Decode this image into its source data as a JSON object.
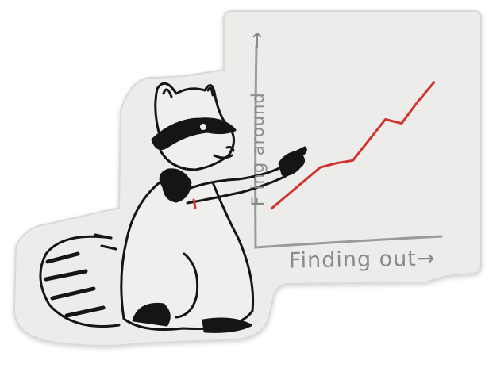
{
  "sticker": {
    "x_axis_label": "Finding out",
    "y_axis_label": "F ing around",
    "x_arrow": "→",
    "y_arrow": "↑"
  },
  "chart_data": {
    "type": "line",
    "xlabel": "Finding out",
    "ylabel": "F ing around",
    "x": [
      0,
      1,
      2,
      3,
      4,
      5,
      6,
      7,
      8,
      9,
      10
    ],
    "series": [
      {
        "values": [
          1,
          2,
          3,
          4,
          4.3,
          4.5,
          6,
          7.5,
          7.2,
          8.8,
          10.2
        ]
      }
    ],
    "xlim": [
      0,
      11
    ],
    "ylim": [
      0,
      11
    ],
    "line_color": "#d0342c",
    "grid": false
  },
  "colors": {
    "sticker_fill": "#ececea",
    "sticker_edge": "#d7d7d4",
    "ink": "#151515",
    "axis": "#9a9a9a",
    "accent": "#d0342c"
  },
  "icons": {
    "character": "raccoon-illustration-icon",
    "x_arrow": "right-arrow-icon",
    "y_arrow": "up-arrow-icon"
  }
}
